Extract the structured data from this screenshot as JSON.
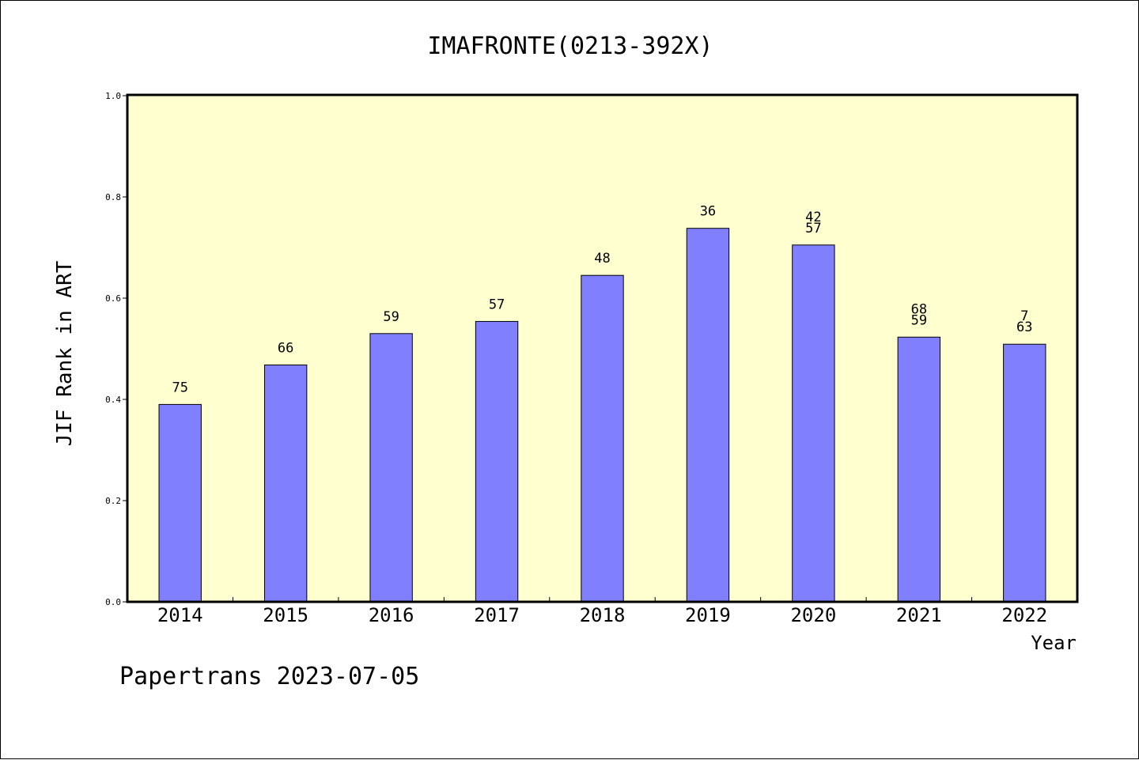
{
  "chart_data": {
    "type": "bar",
    "title": "IMAFRONTE(0213-392X)",
    "ylabel": "JIF Rank in ART",
    "xlabel": "Year",
    "categories": [
      "2014",
      "2015",
      "2016",
      "2017",
      "2018",
      "2019",
      "2020",
      "2021",
      "2022"
    ],
    "values": [
      0.39,
      0.468,
      0.53,
      0.554,
      0.645,
      0.738,
      0.705,
      0.523,
      0.509
    ],
    "data_labels": [
      [
        "75"
      ],
      [
        "66"
      ],
      [
        "59"
      ],
      [
        "57"
      ],
      [
        "48"
      ],
      [
        "36"
      ],
      [
        "42",
        "57"
      ],
      [
        "68",
        "59"
      ],
      [
        "7",
        "63"
      ]
    ],
    "ylim": [
      0,
      1
    ],
    "yticks": [
      "0.0",
      "0.2",
      "0.4",
      "0.6",
      "0.8",
      "1.0"
    ],
    "grid": false,
    "plot_background": "#FFFFD0",
    "bar_color": "#8080FF"
  },
  "footer": "Papertrans 2023-07-05"
}
